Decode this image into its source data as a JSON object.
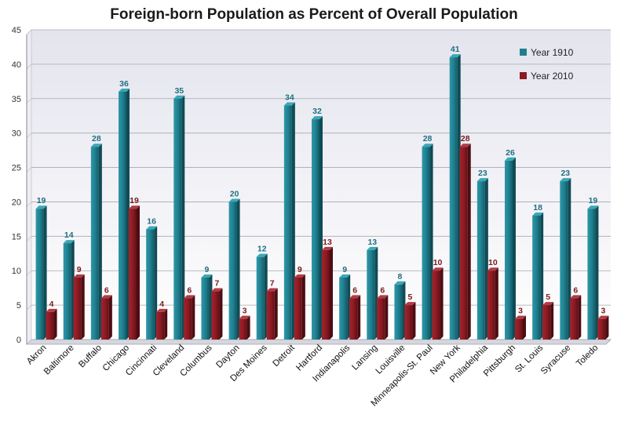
{
  "chart_data": {
    "type": "bar",
    "title": "Foreign-born Population as Percent of Overall Population",
    "xlabel": "",
    "ylabel": "",
    "ylim": [
      0,
      45
    ],
    "yticks": [
      0,
      5,
      10,
      15,
      20,
      25,
      30,
      35,
      40,
      45
    ],
    "grid": true,
    "legend_position": "top-right",
    "categories": [
      "Akron",
      "Baltimore",
      "Buffalo",
      "Chicago",
      "Cincinnati",
      "Cleveland",
      "Columbus",
      "Dayton",
      "Des Moines",
      "Detroit",
      "Hartford",
      "Indianapolis",
      "Lansing",
      "Louisville",
      "Minneapolis-St. Paul",
      "New York",
      "Philadelphia",
      "Pittsburgh",
      "St. Louis",
      "Syracuse",
      "Toledo"
    ],
    "series": [
      {
        "name": "Year 1910",
        "color": "#1f7f8f",
        "label_color": "#1f6f80",
        "values": [
          19,
          14,
          28,
          36,
          16,
          35,
          9,
          20,
          12,
          34,
          32,
          9,
          13,
          8,
          28,
          41,
          23,
          26,
          18,
          23,
          19
        ]
      },
      {
        "name": "Year 2010",
        "color": "#8b1a22",
        "label_color": "#7a1a1a",
        "values": [
          4,
          9,
          6,
          19,
          4,
          6,
          7,
          3,
          7,
          9,
          13,
          6,
          6,
          5,
          10,
          28,
          10,
          3,
          5,
          6,
          3
        ]
      }
    ]
  }
}
